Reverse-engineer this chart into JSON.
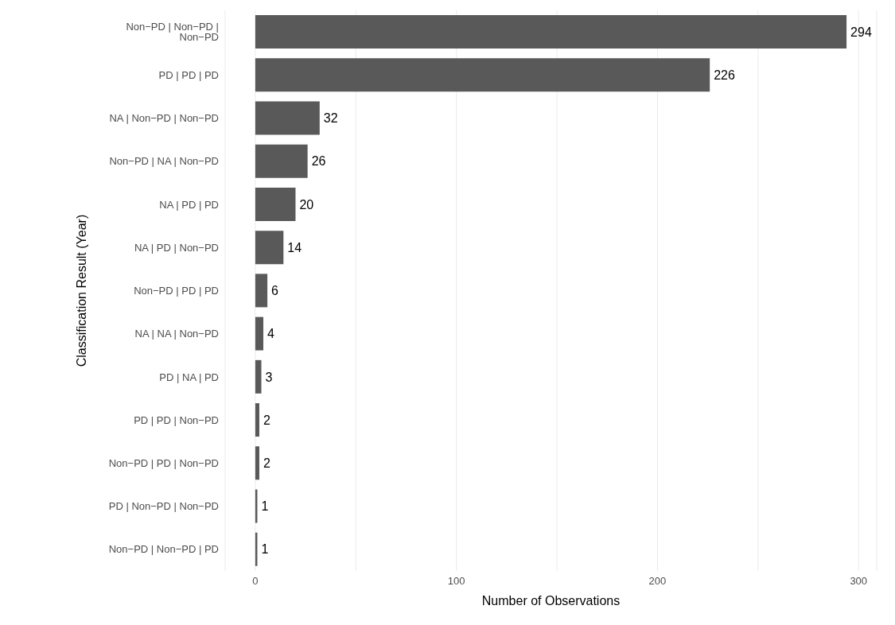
{
  "chart_data": {
    "type": "bar",
    "orientation": "horizontal",
    "xlabel": "Number of Observations",
    "ylabel": "Classification Result (Year)",
    "categories": [
      "Non−PD | Non−PD | Non−PD",
      "PD | PD | PD",
      "NA | Non−PD | Non−PD",
      "Non−PD | NA | Non−PD",
      "NA | PD | PD",
      "NA | PD | Non−PD",
      "Non−PD | PD | PD",
      "NA | NA | Non−PD",
      "PD | NA | PD",
      "PD | PD | Non−PD",
      "Non−PD | PD | Non−PD",
      "PD | Non−PD | Non−PD",
      "Non−PD | Non−PD | PD"
    ],
    "values": [
      294,
      226,
      32,
      26,
      20,
      14,
      6,
      4,
      3,
      2,
      2,
      1,
      1
    ],
    "color": "#595959",
    "data_labels": true,
    "grid": "x",
    "xlim": [
      -15,
      309
    ],
    "xticks": [
      0,
      {
        "value": 50,
        "label": null
      },
      100,
      {
        "value": 150,
        "label": null
      },
      200,
      {
        "value": 250,
        "label": null
      },
      300
    ]
  }
}
